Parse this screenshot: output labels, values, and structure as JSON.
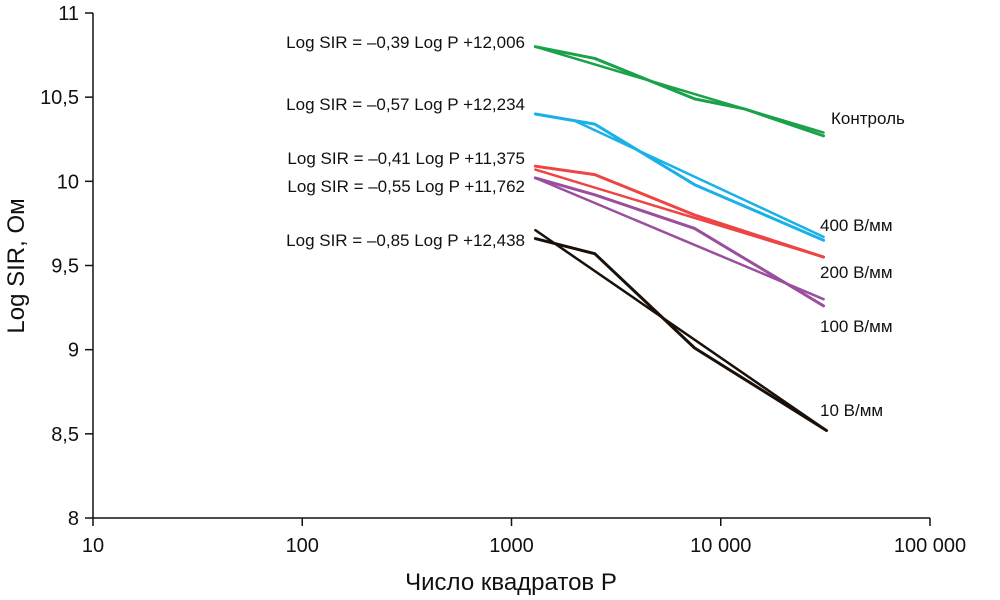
{
  "chart_data": {
    "type": "line",
    "title": "",
    "xlabel": "Число квадратов P",
    "ylabel": "Log SIR, Ом",
    "xscale": "log",
    "xlim": [
      10,
      100000
    ],
    "ylim": [
      8,
      11
    ],
    "grid": false,
    "x_ticks": [
      {
        "value": 10,
        "label": "10"
      },
      {
        "value": 100,
        "label": "100"
      },
      {
        "value": 1000,
        "label": "1000"
      },
      {
        "value": 10000,
        "label": "10 000"
      },
      {
        "value": 100000,
        "label": "100 000"
      }
    ],
    "y_ticks": [
      {
        "value": 8,
        "label": "8"
      },
      {
        "value": 8.5,
        "label": "8,5"
      },
      {
        "value": 9,
        "label": "9"
      },
      {
        "value": 9.5,
        "label": "9,5"
      },
      {
        "value": 10,
        "label": "10"
      },
      {
        "value": 10.5,
        "label": "10,5"
      },
      {
        "value": 11,
        "label": "11"
      }
    ],
    "series": [
      {
        "name": "Контроль",
        "color": "#1aa14a",
        "equation": "Log SIR = –0,39 Log P +12,006",
        "measured": {
          "x": [
            1300,
            2500,
            7500,
            13000,
            31000
          ],
          "y": [
            10.8,
            10.73,
            10.49,
            10.43,
            10.27
          ]
        },
        "fit": {
          "x": [
            1300,
            31000
          ],
          "y": [
            10.8,
            10.29
          ]
        }
      },
      {
        "name": "400 В/мм",
        "color": "#1ab0e8",
        "equation": "Log SIR = –0,57 Log P +12,234",
        "measured": {
          "x": [
            1300,
            2500,
            7500,
            31000
          ],
          "y": [
            10.4,
            10.34,
            9.98,
            9.65
          ]
        },
        "fit": {
          "x": [
            1300,
            2000,
            31000
          ],
          "y": [
            10.4,
            10.36,
            9.67
          ]
        }
      },
      {
        "name": "200 В/мм",
        "color": "#ee4444",
        "equation": "Log SIR = –0,41 Log P +11,375",
        "measured": {
          "x": [
            1300,
            2500,
            7500,
            31000
          ],
          "y": [
            10.09,
            10.04,
            9.8,
            9.55
          ]
        },
        "fit": {
          "x": [
            1300,
            31000
          ],
          "y": [
            10.07,
            9.55
          ]
        }
      },
      {
        "name": "100 В/мм",
        "color": "#9a4f9e",
        "equation": "Log SIR = –0,55 Log P +11,762",
        "measured": {
          "x": [
            1300,
            2500,
            7500,
            31000
          ],
          "y": [
            10.02,
            9.92,
            9.72,
            9.26
          ]
        },
        "fit": {
          "x": [
            1300,
            31000
          ],
          "y": [
            10.02,
            9.3
          ]
        }
      },
      {
        "name": "10 В/мм",
        "color": "#1a1008",
        "equation": "Log SIR = –0,85 Log P +12,438",
        "measured": {
          "x": [
            1300,
            2500,
            7500,
            32000
          ],
          "y": [
            9.66,
            9.57,
            9.01,
            8.52
          ]
        },
        "fit": {
          "x": [
            1300,
            32000
          ],
          "y": [
            9.71,
            8.52
          ]
        }
      }
    ]
  }
}
